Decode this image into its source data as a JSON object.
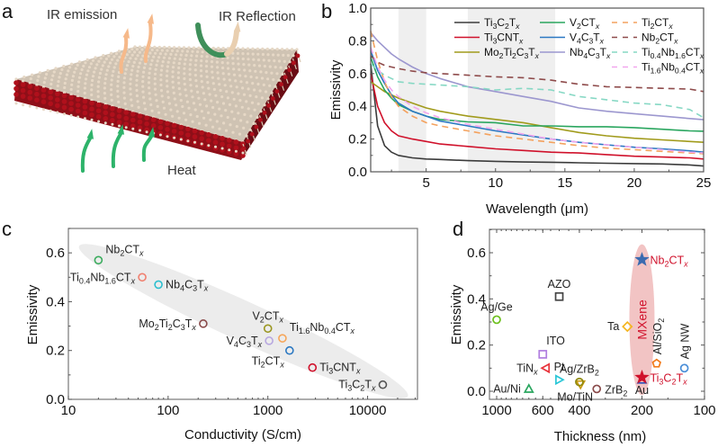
{
  "panel_a": {
    "letter": "a",
    "labels": {
      "ir_emission": "IR emission",
      "ir_reflection": "IR Reflection",
      "heat": "Heat"
    },
    "colors": {
      "emission_arrow": "#f6b98a",
      "reflection_in": "#3f8f5a",
      "reflection_out": "#e9cfb0",
      "heat_arrow": "#2db36a",
      "atom_red": "#b0101c",
      "atom_light": "#e6d8c6",
      "atom_dark": "#333333"
    }
  },
  "chart_data": [
    {
      "id": "b",
      "letter": "b",
      "type": "line",
      "title": "",
      "xlabel": "Wavelength (μm)",
      "ylabel": "Emissivity",
      "xlim": [
        1,
        25
      ],
      "ylim": [
        0,
        1.0
      ],
      "xticks": [
        5,
        10,
        15,
        20,
        25
      ],
      "yticks": [
        0.0,
        0.2,
        0.4,
        0.6,
        0.8,
        1.0
      ],
      "ytick_labels": [
        "0.0",
        "0.2",
        "0.4",
        "0.6",
        "0.8",
        "1.0"
      ],
      "shaded_bands": [
        [
          3,
          5
        ],
        [
          8,
          14.3
        ]
      ],
      "legend_position": "top-right",
      "x": [
        1,
        1.5,
        2,
        2.5,
        3,
        4,
        5,
        6,
        8,
        10,
        12,
        14,
        16,
        18,
        20,
        22,
        24,
        25
      ],
      "series": [
        {
          "name": "Ti3C2Tx",
          "label": [
            "Ti",
            "3",
            "C",
            "2",
            "T",
            "x"
          ],
          "color": "#3b3b3b",
          "dash": false,
          "values": [
            0.66,
            0.28,
            0.16,
            0.12,
            0.1,
            0.085,
            0.078,
            0.075,
            0.068,
            0.064,
            0.06,
            0.058,
            0.055,
            0.052,
            0.05,
            0.048,
            0.042,
            0.035
          ]
        },
        {
          "name": "Ti3CNTx",
          "label": [
            "Ti",
            "3",
            "CNT",
            "",
            "",
            "x"
          ],
          "color": "#d0112b",
          "dash": false,
          "values": [
            0.6,
            0.4,
            0.3,
            0.25,
            0.22,
            0.2,
            0.185,
            0.17,
            0.155,
            0.14,
            0.13,
            0.12,
            0.115,
            0.105,
            0.095,
            0.09,
            0.085,
            0.078
          ]
        },
        {
          "name": "Mo2Ti2C3Tx",
          "label": [
            "Mo",
            "2",
            "Ti",
            "2",
            "C",
            "3",
            "T",
            "x"
          ],
          "color": "#a19b1c",
          "dash": false,
          "values": [
            0.55,
            0.52,
            0.49,
            0.47,
            0.45,
            0.42,
            0.39,
            0.37,
            0.34,
            0.32,
            0.3,
            0.27,
            0.24,
            0.22,
            0.205,
            0.195,
            0.185,
            0.18
          ]
        },
        {
          "name": "V2CTx",
          "label": [
            "V",
            "2",
            "CT",
            "",
            "",
            "x"
          ],
          "color": "#2aa65f",
          "dash": false,
          "values": [
            0.7,
            0.58,
            0.5,
            0.45,
            0.41,
            0.37,
            0.34,
            0.32,
            0.305,
            0.3,
            0.28,
            0.28,
            0.275,
            0.275,
            0.27,
            0.26,
            0.25,
            0.248
          ]
        },
        {
          "name": "V4C3Tx",
          "label": [
            "V",
            "4",
            "C",
            "3",
            "T",
            "x"
          ],
          "color": "#2b78c2",
          "dash": false,
          "values": [
            0.74,
            0.62,
            0.54,
            0.47,
            0.42,
            0.37,
            0.34,
            0.31,
            0.28,
            0.25,
            0.225,
            0.2,
            0.18,
            0.165,
            0.15,
            0.14,
            0.128,
            0.12
          ]
        },
        {
          "name": "Nb4C3Tx",
          "label": [
            "Nb",
            "4",
            "C",
            "3",
            "T",
            "x"
          ],
          "color": "#9c97cf",
          "dash": false,
          "values": [
            0.85,
            0.8,
            0.76,
            0.72,
            0.69,
            0.64,
            0.6,
            0.57,
            0.52,
            0.49,
            0.46,
            0.43,
            0.39,
            0.37,
            0.355,
            0.34,
            0.325,
            0.318
          ]
        },
        {
          "name": "Ti2CTx",
          "label": [
            "Ti",
            "2",
            "CT",
            "",
            "",
            "x"
          ],
          "color": "#f4a25e",
          "dash": true,
          "values": [
            0.86,
            0.68,
            0.55,
            0.46,
            0.4,
            0.34,
            0.3,
            0.28,
            0.25,
            0.22,
            0.2,
            0.18,
            0.16,
            0.145,
            0.135,
            0.125,
            0.115,
            0.11
          ]
        },
        {
          "name": "Nb2CTx",
          "label": [
            "Nb",
            "2",
            "CT",
            "",
            "",
            "x"
          ],
          "color": "#8e4b4b",
          "dash": true,
          "values": [
            0.71,
            0.67,
            0.65,
            0.64,
            0.63,
            0.615,
            0.605,
            0.6,
            0.59,
            0.58,
            0.575,
            0.56,
            0.535,
            0.52,
            0.515,
            0.51,
            0.505,
            0.49
          ]
        },
        {
          "name": "Ti0.4Nb1.6CTx",
          "label": [
            "Ti",
            "0.4",
            "Nb",
            "1.6",
            "CT",
            "x"
          ],
          "color": "#86d8c4",
          "dash": true,
          "values": [
            0.66,
            0.62,
            0.59,
            0.57,
            0.55,
            0.54,
            0.535,
            0.53,
            0.52,
            0.5,
            0.51,
            0.5,
            0.46,
            0.44,
            0.42,
            0.41,
            0.38,
            0.33
          ]
        },
        {
          "name": "Ti1.6Nb0.4CTx",
          "label": [
            "Ti",
            "1.6",
            "Nb",
            "0.4",
            "CT",
            "x"
          ],
          "color": "#f2a6ee",
          "dash": true,
          "values": [
            0.76,
            0.64,
            0.56,
            0.5,
            0.46,
            0.4,
            0.36,
            0.33,
            0.29,
            0.26,
            0.23,
            0.2,
            0.18,
            0.165,
            0.15,
            0.135,
            0.12,
            0.115
          ]
        }
      ]
    },
    {
      "id": "c",
      "letter": "c",
      "type": "scatter",
      "title": "",
      "xlabel": "Conductivity (S/cm)",
      "ylabel": "Emissivity",
      "xscale": "log",
      "xlim": [
        10,
        31623
      ],
      "ylim": [
        0,
        0.7
      ],
      "xticks": [
        10,
        100,
        1000,
        10000
      ],
      "xtick_labels": [
        "10",
        "100",
        "1000",
        "10000"
      ],
      "yticks": [
        0.0,
        0.2,
        0.4,
        0.6
      ],
      "ytick_labels": [
        "0.0",
        "0.2",
        "0.4",
        "0.6"
      ],
      "shaded_region": "diagonal ellipse enclosing all points",
      "points": [
        {
          "name": "Nb2CTx",
          "label": [
            "Nb",
            "2",
            "CT",
            "x"
          ],
          "x": 20,
          "y": 0.57,
          "color": "#3aac5d",
          "label_pos": "upper-right"
        },
        {
          "name": "Ti0.4Nb1.6CTx",
          "label": [
            "Ti",
            "0.4",
            "Nb",
            "1.6",
            "CT",
            "x"
          ],
          "x": 55,
          "y": 0.5,
          "color": "#f08070",
          "label_pos": "left"
        },
        {
          "name": "Nb4C3Tx",
          "label": [
            "Nb",
            "4",
            "C",
            "3",
            "T",
            "x"
          ],
          "x": 80,
          "y": 0.47,
          "color": "#2bbfcf",
          "label_pos": "right"
        },
        {
          "name": "Mo2Ti2C3Tx",
          "label": [
            "Mo",
            "2",
            "Ti",
            "2",
            "C",
            "3",
            "T",
            "x"
          ],
          "x": 225,
          "y": 0.31,
          "color": "#8a4a4a",
          "label_pos": "left"
        },
        {
          "name": "V2CTx",
          "label": [
            "V",
            "2",
            "CT",
            "x"
          ],
          "x": 1000,
          "y": 0.29,
          "color": "#9a9620",
          "label_pos": "above"
        },
        {
          "name": "Ti1.6Nb0.4CTx",
          "label": [
            "Ti",
            "1.6",
            "Nb",
            "0.4",
            "CT",
            "x"
          ],
          "x": 1400,
          "y": 0.25,
          "color": "#f6a65a",
          "label_pos": "upper-right"
        },
        {
          "name": "V4C3Tx",
          "label": [
            "V",
            "4",
            "C",
            "3",
            "T",
            "x"
          ],
          "x": 1030,
          "y": 0.24,
          "color": "#b8a8e0",
          "label_pos": "left"
        },
        {
          "name": "Ti2CTx",
          "label": [
            "Ti",
            "2",
            "CT",
            "x"
          ],
          "x": 1650,
          "y": 0.2,
          "color": "#2b78c2",
          "label_pos": "below-left"
        },
        {
          "name": "Ti3CNTx",
          "label": [
            "Ti",
            "3",
            "CNT",
            "x"
          ],
          "x": 2800,
          "y": 0.13,
          "color": "#d0112b",
          "label_pos": "right"
        },
        {
          "name": "Ti3C2Tx",
          "label": [
            "Ti",
            "3",
            "C",
            "2",
            "T",
            "x"
          ],
          "x": 14200,
          "y": 0.06,
          "color": "#555555",
          "label_pos": "left"
        }
      ]
    },
    {
      "id": "d",
      "letter": "d",
      "type": "scatter",
      "title": "",
      "xlabel": "Thickness (nm)",
      "ylabel": "Emissivity",
      "xscale": "log",
      "x_reversed": true,
      "xlim": [
        1000,
        100
      ],
      "ylim": [
        -0.02,
        0.7
      ],
      "xticks": [
        1000,
        600,
        400,
        200,
        100
      ],
      "xtick_labels": [
        "1000",
        "600",
        "400",
        "200",
        "100"
      ],
      "yticks": [
        0.0,
        0.2,
        0.4,
        0.6
      ],
      "ytick_labels": [
        "0.0",
        "0.2",
        "0.4",
        "0.6"
      ],
      "highlight": {
        "label": "MXene",
        "color": "#f2c4c4",
        "text_color": "#d0112b"
      },
      "points": [
        {
          "name": "Ag/Ge",
          "label": "Ag/Ge",
          "x": 1000,
          "y": 0.31,
          "marker": "circle",
          "color": "#6cbf1c",
          "label_pos": "above"
        },
        {
          "name": "AZO",
          "label": "AZO",
          "x": 500,
          "y": 0.41,
          "marker": "square",
          "color": "#444444",
          "label_pos": "above"
        },
        {
          "name": "ITO",
          "label": "ITO",
          "x": 600,
          "y": 0.16,
          "marker": "square",
          "color": "#b07ee0",
          "label_pos": "upper-right"
        },
        {
          "name": "TiNx",
          "label": "TiN_x",
          "x": 580,
          "y": 0.1,
          "marker": "triangle-left",
          "color": "#e8333b",
          "label_pos": "left"
        },
        {
          "name": "Pt",
          "label": "Pt",
          "x": 500,
          "y": 0.05,
          "marker": "triangle-right",
          "color": "#28c6d6",
          "label_pos": "above"
        },
        {
          "name": "Au/Ni",
          "label": "Au/Ni",
          "x": 700,
          "y": 0.01,
          "marker": "triangle-up",
          "color": "#2aa65f",
          "label_pos": "left"
        },
        {
          "name": "Mo/TiN",
          "label": "Mo/TiN",
          "x": 395,
          "y": 0.03,
          "marker": "triangle-down",
          "color": "#c99a10",
          "label_pos": "below-left"
        },
        {
          "name": "Ag/ZrB2",
          "label": "Ag/ZrB_2",
          "x": 400,
          "y": 0.04,
          "marker": "circle",
          "color": "#8f8a10",
          "label_pos": "above"
        },
        {
          "name": "ZrB2",
          "label": "ZrB_2",
          "x": 330,
          "y": 0.01,
          "marker": "circle",
          "color": "#8a4a4a",
          "label_pos": "right"
        },
        {
          "name": "Ta",
          "label": "Ta",
          "x": 235,
          "y": 0.28,
          "marker": "diamond",
          "color": "#f4b51e",
          "label_pos": "left"
        },
        {
          "name": "Nb2CTx",
          "label": "Nb_2CT_x",
          "x": 200,
          "y": 0.57,
          "marker": "star",
          "color": "#3b6bb0",
          "label_pos": "right",
          "label_color": "#d0112b"
        },
        {
          "name": "Ti3C2Tx",
          "label": "Ti_3C_2T_x",
          "x": 200,
          "y": 0.06,
          "marker": "star",
          "color": "#d0112b",
          "label_pos": "right",
          "label_color": "#d0112b"
        },
        {
          "name": "Au",
          "label": "Au",
          "x": 200,
          "y": 0.05,
          "marker": "triangle-up",
          "color": "#2b4fb8",
          "label_pos": "below"
        },
        {
          "name": "Al/SiO2",
          "label": "Al/SiO_2",
          "x": 170,
          "y": 0.12,
          "marker": "pentagon",
          "color": "#f27a1a",
          "label_pos": "above-rotated"
        },
        {
          "name": "Ag NW",
          "label": "Ag NW",
          "x": 125,
          "y": 0.1,
          "marker": "circle",
          "color": "#4a8ed8",
          "label_pos": "above-rotated"
        }
      ]
    }
  ]
}
